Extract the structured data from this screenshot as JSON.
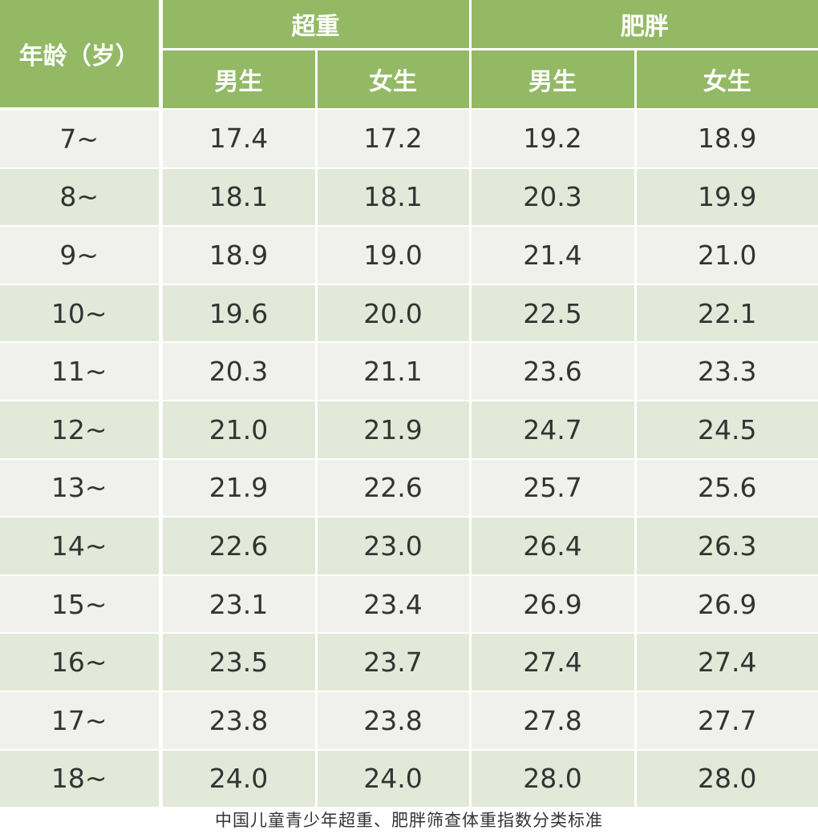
{
  "header": {
    "age_label": "年龄（岁）",
    "overweight_label": "超重",
    "obese_label": "肥胖",
    "sub_labels": [
      "男生",
      "女生",
      "男生",
      "女生"
    ]
  },
  "rows": [
    {
      "age": "7~",
      "ow_m": "17.4",
      "ow_f": "17.2",
      "ob_m": "19.2",
      "ob_f": "18.9"
    },
    {
      "age": "8~",
      "ow_m": "18.1",
      "ow_f": "18.1",
      "ob_m": "20.3",
      "ob_f": "19.9"
    },
    {
      "age": "9~",
      "ow_m": "18.9",
      "ow_f": "19.0",
      "ob_m": "21.4",
      "ob_f": "21.0"
    },
    {
      "age": "10~",
      "ow_m": "19.6",
      "ow_f": "20.0",
      "ob_m": "22.5",
      "ob_f": "22.1"
    },
    {
      "age": "11~",
      "ow_m": "20.3",
      "ow_f": "21.1",
      "ob_m": "23.6",
      "ob_f": "23.3"
    },
    {
      "age": "12~",
      "ow_m": "21.0",
      "ow_f": "21.9",
      "ob_m": "24.7",
      "ob_f": "24.5"
    },
    {
      "age": "13~",
      "ow_m": "21.9",
      "ow_f": "22.6",
      "ob_m": "25.7",
      "ob_f": "25.6"
    },
    {
      "age": "14~",
      "ow_m": "22.6",
      "ow_f": "23.0",
      "ob_m": "26.4",
      "ob_f": "26.3"
    },
    {
      "age": "15~",
      "ow_m": "23.1",
      "ow_f": "23.4",
      "ob_m": "26.9",
      "ob_f": "26.9"
    },
    {
      "age": "16~",
      "ow_m": "23.5",
      "ow_f": "23.7",
      "ob_m": "27.4",
      "ob_f": "27.4"
    },
    {
      "age": "17~",
      "ow_m": "23.8",
      "ow_f": "23.8",
      "ob_m": "27.8",
      "ob_f": "27.7"
    },
    {
      "age": "18~",
      "ow_m": "24.0",
      "ow_f": "24.0",
      "ob_m": "28.0",
      "ob_f": "28.0"
    }
  ],
  "caption": "中国儿童青少年超重、肥胖筛查体重指数分类标准",
  "colors": {
    "header_green": "#93b965",
    "row_light": "#f0f0ec",
    "row_green": "#e2e9d8"
  }
}
